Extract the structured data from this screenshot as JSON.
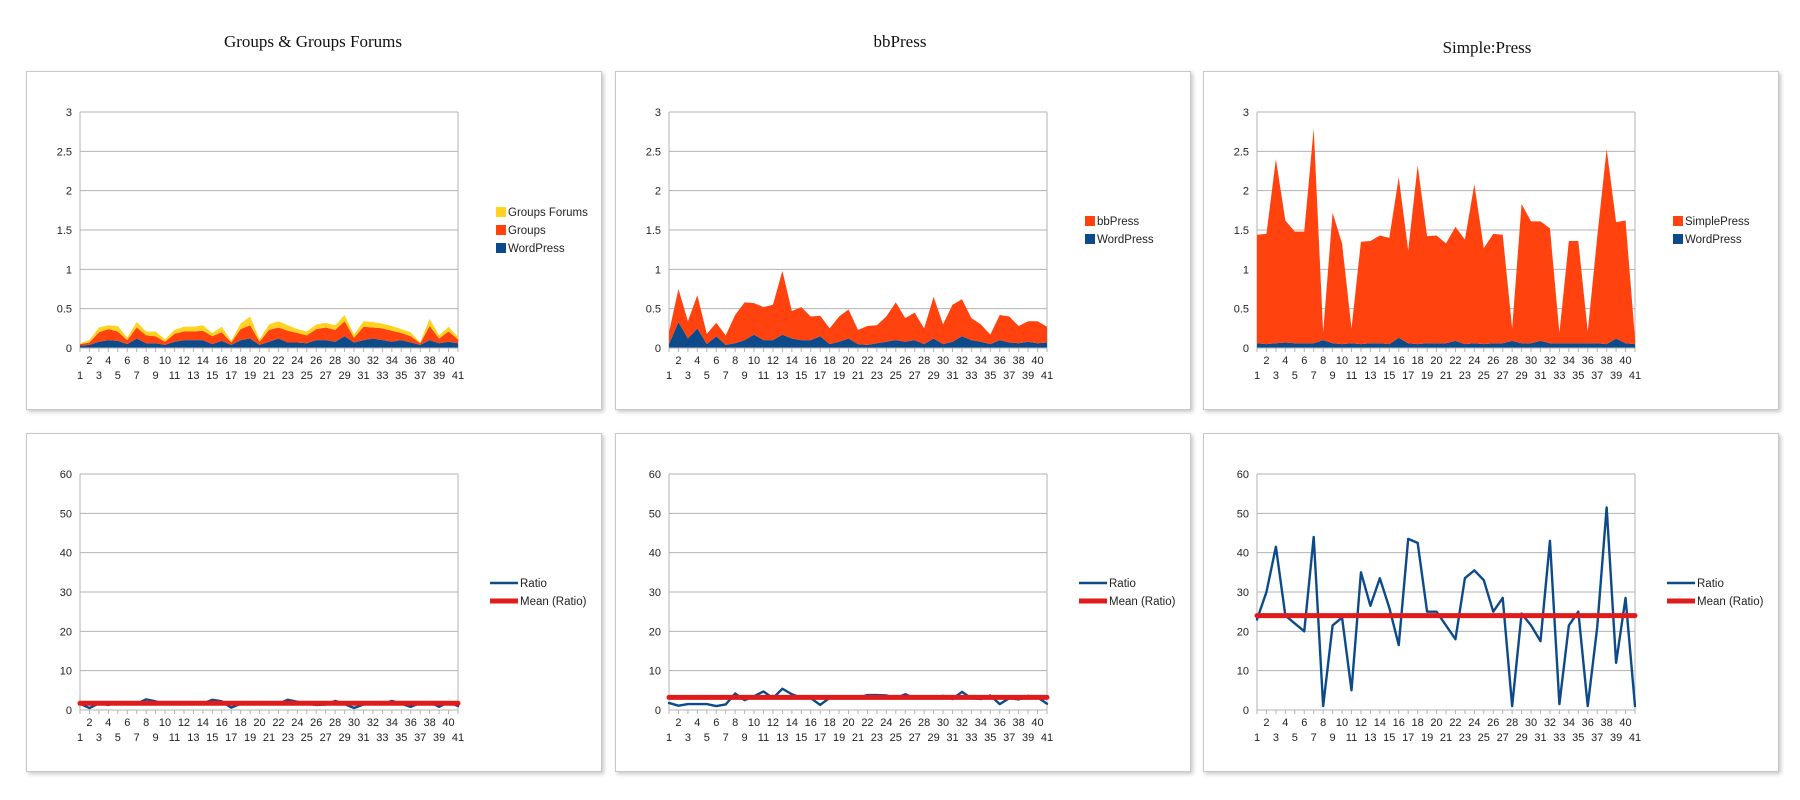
{
  "titles": [
    "Groups & Groups Forums",
    "bbPress",
    "Simple:Press"
  ],
  "colors": {
    "wordpress": "#0d4a8a",
    "orange": "#ff420e",
    "yellow": "#ffd320",
    "ratio": "#0d4a8a",
    "mean": "#e01b1b",
    "grid": "#b3b3b3"
  },
  "chart_data": [
    {
      "type": "area",
      "stacked": true,
      "x": [
        1,
        2,
        3,
        4,
        5,
        6,
        7,
        8,
        9,
        10,
        11,
        12,
        13,
        14,
        15,
        16,
        17,
        18,
        19,
        20,
        21,
        22,
        23,
        24,
        25,
        26,
        27,
        28,
        29,
        30,
        31,
        32,
        33,
        34,
        35,
        36,
        37,
        38,
        39,
        40,
        41
      ],
      "ylim": [
        0,
        3
      ],
      "yticks": [
        "0",
        "0.5",
        "1",
        "1.5",
        "2",
        "2.5",
        "3"
      ],
      "legend_position": "right",
      "series": [
        {
          "name": "WordPress",
          "color": "#0d4a8a",
          "values": [
            0.03,
            0.04,
            0.08,
            0.1,
            0.09,
            0.05,
            0.12,
            0.06,
            0.06,
            0.04,
            0.08,
            0.1,
            0.1,
            0.1,
            0.05,
            0.09,
            0.04,
            0.1,
            0.12,
            0.04,
            0.08,
            0.12,
            0.07,
            0.07,
            0.06,
            0.1,
            0.1,
            0.08,
            0.15,
            0.07,
            0.1,
            0.12,
            0.1,
            0.08,
            0.1,
            0.07,
            0.04,
            0.1,
            0.06,
            0.08,
            0.06
          ]
        },
        {
          "name": "Groups",
          "color": "#ff420e",
          "values": [
            0.02,
            0.03,
            0.12,
            0.14,
            0.12,
            0.05,
            0.14,
            0.1,
            0.09,
            0.04,
            0.1,
            0.11,
            0.11,
            0.12,
            0.1,
            0.11,
            0.03,
            0.14,
            0.17,
            0.04,
            0.15,
            0.14,
            0.15,
            0.12,
            0.1,
            0.14,
            0.16,
            0.15,
            0.19,
            0.06,
            0.17,
            0.14,
            0.15,
            0.14,
            0.09,
            0.08,
            0.02,
            0.18,
            0.06,
            0.13,
            0.05
          ]
        },
        {
          "name": "Groups Forums",
          "color": "#ffd320",
          "values": [
            0.01,
            0.03,
            0.06,
            0.05,
            0.07,
            0.03,
            0.07,
            0.05,
            0.06,
            0.03,
            0.05,
            0.06,
            0.06,
            0.07,
            0.04,
            0.07,
            0.02,
            0.07,
            0.11,
            0.03,
            0.07,
            0.08,
            0.07,
            0.05,
            0.05,
            0.06,
            0.06,
            0.06,
            0.08,
            0.04,
            0.07,
            0.07,
            0.06,
            0.06,
            0.05,
            0.05,
            0.01,
            0.09,
            0.04,
            0.06,
            0.03
          ]
        }
      ]
    },
    {
      "type": "area",
      "stacked": true,
      "x": [
        1,
        2,
        3,
        4,
        5,
        6,
        7,
        8,
        9,
        10,
        11,
        12,
        13,
        14,
        15,
        16,
        17,
        18,
        19,
        20,
        21,
        22,
        23,
        24,
        25,
        26,
        27,
        28,
        29,
        30,
        31,
        32,
        33,
        34,
        35,
        36,
        37,
        38,
        39,
        40,
        41
      ],
      "ylim": [
        0,
        3
      ],
      "yticks": [
        "0",
        "0.5",
        "1",
        "1.5",
        "2",
        "2.5",
        "3"
      ],
      "legend_position": "right",
      "series": [
        {
          "name": "WordPress",
          "color": "#0d4a8a",
          "values": [
            0.05,
            0.33,
            0.12,
            0.25,
            0.05,
            0.15,
            0.04,
            0.06,
            0.1,
            0.17,
            0.1,
            0.1,
            0.17,
            0.12,
            0.1,
            0.1,
            0.15,
            0.05,
            0.08,
            0.12,
            0.05,
            0.04,
            0.06,
            0.08,
            0.1,
            0.08,
            0.1,
            0.05,
            0.12,
            0.05,
            0.08,
            0.15,
            0.1,
            0.08,
            0.05,
            0.1,
            0.07,
            0.06,
            0.08,
            0.06,
            0.07
          ]
        },
        {
          "name": "bbPress",
          "color": "#ff420e",
          "values": [
            0.15,
            0.42,
            0.22,
            0.42,
            0.13,
            0.17,
            0.12,
            0.36,
            0.48,
            0.4,
            0.42,
            0.45,
            0.81,
            0.35,
            0.42,
            0.3,
            0.26,
            0.2,
            0.32,
            0.37,
            0.18,
            0.24,
            0.23,
            0.32,
            0.48,
            0.3,
            0.35,
            0.2,
            0.53,
            0.25,
            0.47,
            0.47,
            0.28,
            0.22,
            0.12,
            0.32,
            0.33,
            0.22,
            0.26,
            0.28,
            0.2
          ]
        }
      ]
    },
    {
      "type": "area",
      "stacked": true,
      "x": [
        1,
        2,
        3,
        4,
        5,
        6,
        7,
        8,
        9,
        10,
        11,
        12,
        13,
        14,
        15,
        16,
        17,
        18,
        19,
        20,
        21,
        22,
        23,
        24,
        25,
        26,
        27,
        28,
        29,
        30,
        31,
        32,
        33,
        34,
        35,
        36,
        37,
        38,
        39,
        40,
        41
      ],
      "ylim": [
        0,
        3
      ],
      "yticks": [
        "0",
        "0.5",
        "1",
        "1.5",
        "2",
        "2.5",
        "3"
      ],
      "legend_position": "right",
      "series": [
        {
          "name": "WordPress",
          "color": "#0d4a8a",
          "values": [
            0.06,
            0.05,
            0.06,
            0.07,
            0.06,
            0.06,
            0.06,
            0.1,
            0.06,
            0.05,
            0.06,
            0.05,
            0.06,
            0.06,
            0.05,
            0.13,
            0.06,
            0.05,
            0.06,
            0.06,
            0.06,
            0.09,
            0.05,
            0.06,
            0.05,
            0.06,
            0.06,
            0.09,
            0.06,
            0.06,
            0.09,
            0.06,
            0.06,
            0.06,
            0.06,
            0.06,
            0.06,
            0.05,
            0.12,
            0.06,
            0.05
          ]
        },
        {
          "name": "SimplePress",
          "color": "#ff420e",
          "values": [
            1.38,
            1.4,
            2.34,
            1.55,
            1.42,
            1.42,
            2.73,
            0.1,
            1.66,
            1.28,
            0.19,
            1.3,
            1.3,
            1.37,
            1.35,
            2.04,
            1.18,
            2.27,
            1.36,
            1.37,
            1.27,
            1.45,
            1.33,
            2.02,
            1.22,
            1.39,
            1.38,
            0.16,
            1.77,
            1.55,
            1.52,
            1.46,
            0.13,
            1.3,
            1.3,
            0.15,
            1.35,
            2.48,
            1.48,
            1.56,
            0.07
          ]
        }
      ]
    },
    {
      "type": "line",
      "x": [
        1,
        2,
        3,
        4,
        5,
        6,
        7,
        8,
        9,
        10,
        11,
        12,
        13,
        14,
        15,
        16,
        17,
        18,
        19,
        20,
        21,
        22,
        23,
        24,
        25,
        26,
        27,
        28,
        29,
        30,
        31,
        32,
        33,
        34,
        35,
        36,
        37,
        38,
        39,
        40,
        41
      ],
      "ylim": [
        0,
        60
      ],
      "yticks": [
        "0",
        "10",
        "20",
        "30",
        "40",
        "50",
        "60"
      ],
      "legend_position": "right",
      "series": [
        {
          "name": "Ratio",
          "color": "#0d4a8a",
          "values": [
            1.6,
            0.5,
            1.7,
            1.3,
            2.0,
            1.6,
            1.6,
            2.7,
            2.2,
            1.5,
            1.6,
            1.6,
            1.7,
            1.6,
            2.6,
            2.2,
            0.6,
            1.6,
            2.0,
            1.5,
            2.0,
            1.6,
            2.6,
            2.1,
            1.6,
            1.3,
            1.4,
            2.3,
            1.5,
            0.5,
            1.4,
            2.0,
            1.5,
            2.3,
            1.6,
            0.8,
            1.8,
            2.0,
            0.8,
            2.0,
            1.0
          ]
        },
        {
          "name": "Mean (Ratio)",
          "color": "#e01b1b",
          "values": [
            1.7,
            1.7,
            1.7,
            1.7,
            1.7,
            1.7,
            1.7,
            1.7,
            1.7,
            1.7,
            1.7,
            1.7,
            1.7,
            1.7,
            1.7,
            1.7,
            1.7,
            1.7,
            1.7,
            1.7,
            1.7,
            1.7,
            1.7,
            1.7,
            1.7,
            1.7,
            1.7,
            1.7,
            1.7,
            1.7,
            1.7,
            1.7,
            1.7,
            1.7,
            1.7,
            1.7,
            1.7,
            1.7,
            1.7,
            1.7,
            1.7
          ]
        }
      ]
    },
    {
      "type": "line",
      "x": [
        1,
        2,
        3,
        4,
        5,
        6,
        7,
        8,
        9,
        10,
        11,
        12,
        13,
        14,
        15,
        16,
        17,
        18,
        19,
        20,
        21,
        22,
        23,
        24,
        25,
        26,
        27,
        28,
        29,
        30,
        31,
        32,
        33,
        34,
        35,
        36,
        37,
        38,
        39,
        40,
        41
      ],
      "ylim": [
        0,
        60
      ],
      "yticks": [
        "0",
        "10",
        "20",
        "30",
        "40",
        "50",
        "60"
      ],
      "legend_position": "right",
      "series": [
        {
          "name": "Ratio",
          "color": "#0d4a8a",
          "values": [
            1.8,
            1.1,
            1.5,
            1.5,
            1.5,
            1.0,
            1.4,
            4.2,
            2.5,
            3.5,
            4.7,
            3.0,
            5.4,
            4.0,
            3.1,
            3.0,
            1.3,
            3.1,
            3.0,
            3.0,
            3.1,
            3.8,
            3.8,
            3.7,
            3.0,
            4.0,
            3.0,
            3.0,
            3.0,
            3.6,
            2.8,
            4.6,
            3.0,
            2.8,
            3.7,
            1.5,
            3.0,
            2.7,
            3.6,
            3.2,
            1.6
          ]
        },
        {
          "name": "Mean (Ratio)",
          "color": "#e01b1b",
          "values": [
            3.2,
            3.2,
            3.2,
            3.2,
            3.2,
            3.2,
            3.2,
            3.2,
            3.2,
            3.2,
            3.2,
            3.2,
            3.2,
            3.2,
            3.2,
            3.2,
            3.2,
            3.2,
            3.2,
            3.2,
            3.2,
            3.2,
            3.2,
            3.2,
            3.2,
            3.2,
            3.2,
            3.2,
            3.2,
            3.2,
            3.2,
            3.2,
            3.2,
            3.2,
            3.2,
            3.2,
            3.2,
            3.2,
            3.2,
            3.2,
            3.2
          ]
        }
      ]
    },
    {
      "type": "line",
      "x": [
        1,
        2,
        3,
        4,
        5,
        6,
        7,
        8,
        9,
        10,
        11,
        12,
        13,
        14,
        15,
        16,
        17,
        18,
        19,
        20,
        21,
        22,
        23,
        24,
        25,
        26,
        27,
        28,
        29,
        30,
        31,
        32,
        33,
        34,
        35,
        36,
        37,
        38,
        39,
        40,
        41
      ],
      "ylim": [
        0,
        60
      ],
      "yticks": [
        "0",
        "10",
        "20",
        "30",
        "40",
        "50",
        "60"
      ],
      "legend_position": "right",
      "series": [
        {
          "name": "Ratio",
          "color": "#0d4a8a",
          "values": [
            23.0,
            30.0,
            41.5,
            24.0,
            22.0,
            20.0,
            44.0,
            1.0,
            21.5,
            23.5,
            5.0,
            35.0,
            26.5,
            33.5,
            26.0,
            16.5,
            43.5,
            42.5,
            25.0,
            25.0,
            21.5,
            18.0,
            33.5,
            35.5,
            33.0,
            25.0,
            28.5,
            1.0,
            24.5,
            21.5,
            17.5,
            43.0,
            1.5,
            21.5,
            25.0,
            1.0,
            21.0,
            51.5,
            12.0,
            28.5,
            1.0
          ]
        },
        {
          "name": "Mean (Ratio)",
          "color": "#e01b1b",
          "values": [
            24.0,
            24.0,
            24.0,
            24.0,
            24.0,
            24.0,
            24.0,
            24.0,
            24.0,
            24.0,
            24.0,
            24.0,
            24.0,
            24.0,
            24.0,
            24.0,
            24.0,
            24.0,
            24.0,
            24.0,
            24.0,
            24.0,
            24.0,
            24.0,
            24.0,
            24.0,
            24.0,
            24.0,
            24.0,
            24.0,
            24.0,
            24.0,
            24.0,
            24.0,
            24.0,
            24.0,
            24.0,
            24.0,
            24.0,
            24.0,
            24.0
          ]
        }
      ]
    }
  ]
}
